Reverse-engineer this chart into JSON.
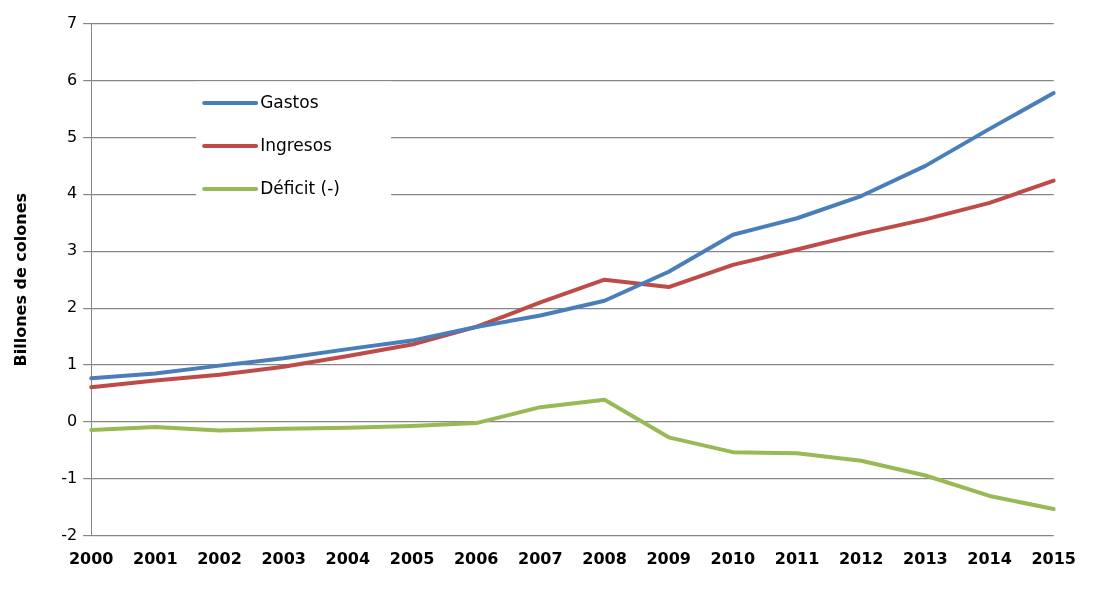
{
  "chart_data": {
    "type": "line",
    "ylabel": "Billones de colones",
    "categories": [
      "2000",
      "2001",
      "2002",
      "2003",
      "2004",
      "2005",
      "2006",
      "2007",
      "2008",
      "2009",
      "2010",
      "2011",
      "2012",
      "2013",
      "2014",
      "2015"
    ],
    "series": [
      {
        "name": "Gastos",
        "color": "#4a7ebb",
        "values": [
          0.77,
          0.85,
          0.99,
          1.12,
          1.28,
          1.43,
          1.67,
          1.87,
          2.13,
          2.64,
          3.29,
          3.58,
          3.97,
          4.5,
          5.15,
          5.78
        ]
      },
      {
        "name": "Ingresos",
        "color": "#be4b48",
        "values": [
          0.61,
          0.73,
          0.83,
          0.97,
          1.16,
          1.36,
          1.67,
          2.1,
          2.5,
          2.37,
          2.76,
          3.03,
          3.31,
          3.56,
          3.85,
          4.24
        ]
      },
      {
        "name": "Déficit (-)",
        "color": "#98b954",
        "values": [
          -0.14,
          -0.09,
          -0.15,
          -0.12,
          -0.1,
          -0.07,
          -0.02,
          0.26,
          0.39,
          -0.27,
          -0.53,
          -0.55,
          -0.68,
          -0.94,
          -1.3,
          -1.53
        ]
      }
    ],
    "ylim": [
      -2,
      7
    ],
    "yticks": [
      -2,
      -1,
      0,
      1,
      2,
      3,
      4,
      5,
      6,
      7
    ],
    "grid": "y",
    "legend": "top left",
    "marker": "none",
    "line_style": "solid"
  }
}
